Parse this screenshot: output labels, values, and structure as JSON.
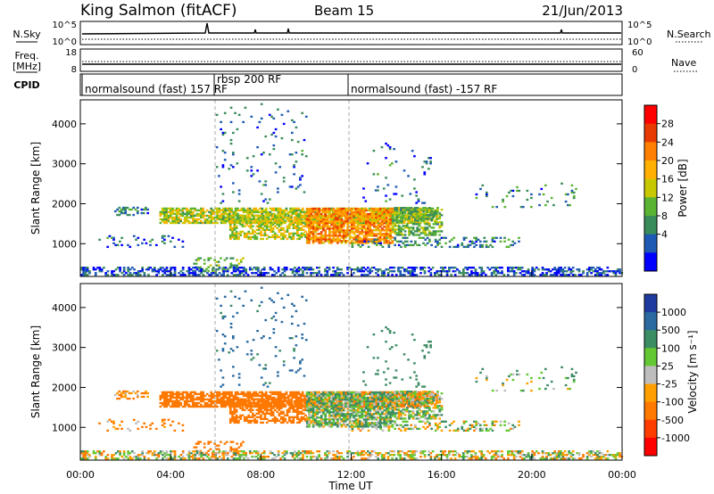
{
  "header": {
    "station": "King Salmon (fitACF)",
    "beam": "Beam 15",
    "date": "21/Jun/2013"
  },
  "noise_panel": {
    "left_label": "N.Sky",
    "right_label": "N.Search",
    "left_ticks": [
      "10^5",
      "10^0"
    ],
    "right_ticks": [
      "10^5",
      "10^0"
    ]
  },
  "freq_panel": {
    "left_label_1": "Freq.",
    "left_label_2": "[MHz]",
    "right_label": "Nave",
    "left_ticks": [
      "18",
      "8"
    ],
    "right_ticks": [
      "60",
      "0"
    ]
  },
  "cpid_panel": {
    "label": "CPID",
    "segments": [
      {
        "text": "normalsound (fast) 157 RF",
        "start_hour": 0
      },
      {
        "text": "rbsp 200 RF",
        "start_hour": 6
      },
      {
        "text": "normalsound (fast) -157 RF",
        "start_hour": 12
      }
    ]
  },
  "power_panel": {
    "ylabel": "Slant Range [km]",
    "colorbar_label": "Power [dB]",
    "colorbar_ticks": [
      "28",
      "24",
      "20",
      "16",
      "12",
      "8",
      "4"
    ],
    "colors": [
      "#ff0000",
      "#e83a00",
      "#ff8000",
      "#ffb000",
      "#c8c800",
      "#5ab432",
      "#3a8c5a",
      "#1e5ab4",
      "#0000ff"
    ]
  },
  "velocity_panel": {
    "ylabel": "Slant Range [km]",
    "colorbar_label": "Velocity [m s⁻¹]",
    "colorbar_ticks": [
      "1000",
      "500",
      "100",
      "25",
      "-25",
      "-100",
      "-500",
      "-1000"
    ],
    "colors": [
      "#1e3ca0",
      "#2a6aa0",
      "#3c8c64",
      "#64c832",
      "#bebebe",
      "#ffa000",
      "#ff7800",
      "#ff3c00",
      "#ff0000"
    ]
  },
  "x_axis": {
    "label": "Time UT",
    "ticks": [
      "00:00",
      "04:00",
      "08:00",
      "12:00",
      "16:00",
      "20:00",
      "00:00"
    ]
  },
  "chart_data": {
    "type": "heatmap",
    "title": "King Salmon (fitACF)",
    "xlabel": "Time UT",
    "ylabel": "Slant Range [km]",
    "xlim": [
      0,
      24
    ],
    "ylim": [
      180,
      4600
    ],
    "y_ticks": [
      1000,
      2000,
      3000,
      4000
    ],
    "power_db_range": [
      0,
      32
    ],
    "velocity_range": [
      -1500,
      1500
    ],
    "scatter_regions": [
      {
        "t0": 3.5,
        "t1": 15.8,
        "r0": 1500,
        "r1": 1900,
        "density": 0.75,
        "power": 15,
        "velocity": -300
      },
      {
        "t0": 6.6,
        "t1": 10.0,
        "r0": 1100,
        "r1": 1700,
        "density": 0.6,
        "power": 16,
        "velocity": -300
      },
      {
        "t0": 10.0,
        "t1": 13.8,
        "r0": 1000,
        "r1": 1900,
        "density": 0.8,
        "power": 22,
        "velocity": 80
      },
      {
        "t0": 13.8,
        "t1": 16.0,
        "r0": 1200,
        "r1": 1900,
        "density": 0.55,
        "power": 12,
        "velocity": 60
      },
      {
        "t0": 12.0,
        "t1": 19.5,
        "r0": 900,
        "r1": 1150,
        "density": 0.3,
        "power": 8,
        "velocity": 25
      },
      {
        "t0": 1.5,
        "t1": 3.0,
        "r0": 1700,
        "r1": 1900,
        "density": 0.35,
        "power": 8,
        "velocity": -150
      },
      {
        "t0": 0.8,
        "t1": 5.0,
        "r0": 900,
        "r1": 1200,
        "density": 0.12,
        "power": 6,
        "velocity": -150
      },
      {
        "t0": 5.0,
        "t1": 7.2,
        "r0": 300,
        "r1": 650,
        "density": 0.25,
        "power": 12,
        "velocity": -300
      },
      {
        "t0": 6.0,
        "t1": 10.0,
        "r0": 2000,
        "r1": 4500,
        "density": 0.04,
        "power": 6,
        "velocity": 600
      },
      {
        "t0": 12.5,
        "t1": 15.5,
        "r0": 2000,
        "r1": 3500,
        "density": 0.04,
        "power": 6,
        "velocity": 300
      },
      {
        "t0": 17.5,
        "t1": 22.0,
        "r0": 1900,
        "r1": 2500,
        "density": 0.06,
        "power": 8,
        "velocity": 100
      },
      {
        "t0": 0.0,
        "t1": 24.0,
        "r0": 200,
        "r1": 420,
        "density": 0.45,
        "power": 5,
        "velocity": 0
      }
    ]
  }
}
